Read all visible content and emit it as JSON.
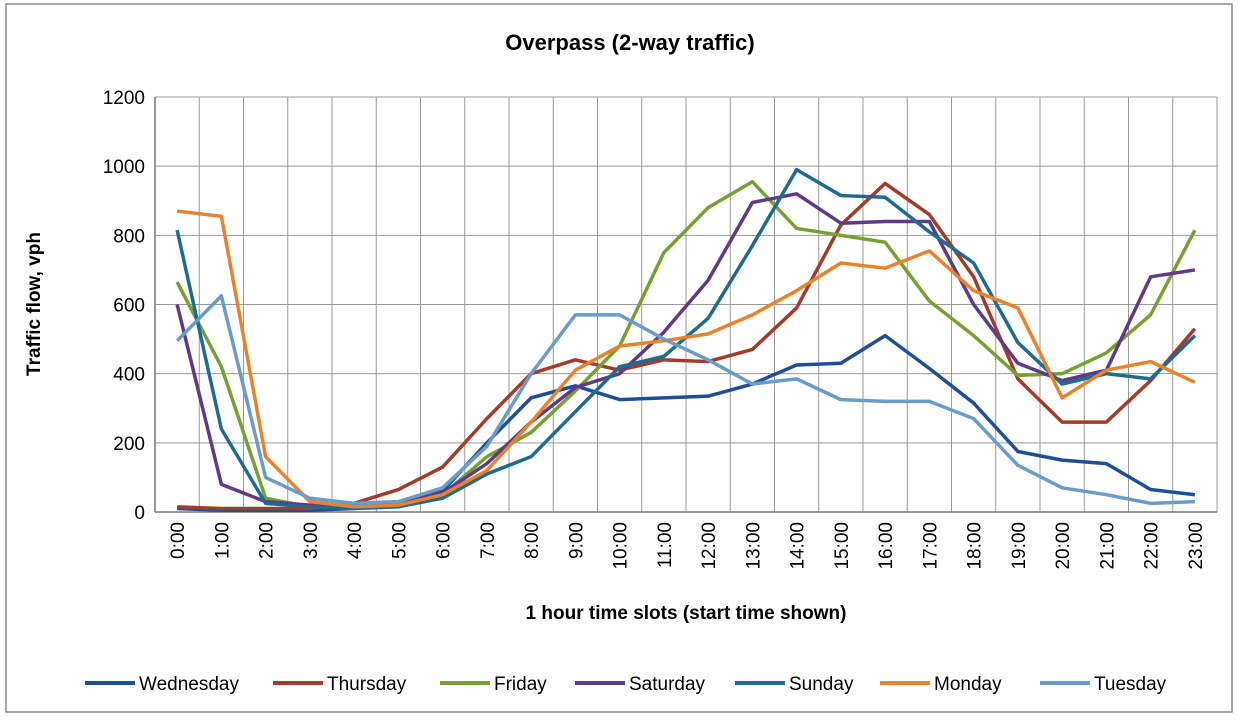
{
  "chart_data": {
    "type": "line",
    "title": "Overpass (2-way traffic)",
    "y_label": "Traffic flow, vph",
    "x_label": "1 hour time slots (start time shown)",
    "categories": [
      "0:00",
      "1:00",
      "2:00",
      "3:00",
      "4:00",
      "5:00",
      "6:00",
      "7:00",
      "8:00",
      "9:00",
      "10:00",
      "11:00",
      "12:00",
      "13:00",
      "14:00",
      "15:00",
      "16:00",
      "17:00",
      "18:00",
      "19:00",
      "20:00",
      "21:00",
      "22:00",
      "23:00"
    ],
    "ylim": [
      0,
      1200
    ],
    "yticks": [
      0,
      200,
      400,
      600,
      800,
      1000,
      1200
    ],
    "grid": true,
    "legend": "bottom",
    "series": [
      {
        "name": "Wednesday",
        "color": "#1f4e99",
        "values": [
          10,
          5,
          5,
          5,
          10,
          20,
          60,
          200,
          330,
          365,
          325,
          330,
          335,
          370,
          425,
          430,
          510,
          415,
          315,
          175,
          150,
          140,
          65,
          50
        ]
      },
      {
        "name": "Thursday",
        "color": "#a33b2a",
        "values": [
          15,
          10,
          10,
          10,
          25,
          65,
          130,
          270,
          400,
          440,
          410,
          440,
          435,
          470,
          590,
          830,
          950,
          860,
          680,
          385,
          260,
          260,
          380,
          530
        ]
      },
      {
        "name": "Friday",
        "color": "#77a032",
        "values": [
          665,
          420,
          40,
          15,
          15,
          20,
          50,
          160,
          230,
          350,
          480,
          750,
          880,
          955,
          820,
          800,
          780,
          610,
          510,
          395,
          400,
          460,
          570,
          815
        ]
      },
      {
        "name": "Saturday",
        "color": "#5e3a87",
        "values": [
          600,
          80,
          30,
          20,
          20,
          25,
          55,
          140,
          260,
          360,
          400,
          520,
          670,
          895,
          920,
          835,
          840,
          840,
          600,
          430,
          380,
          410,
          680,
          700
        ]
      },
      {
        "name": "Sunday",
        "color": "#1e6b8f",
        "values": [
          815,
          240,
          25,
          15,
          10,
          15,
          40,
          110,
          160,
          290,
          420,
          450,
          560,
          770,
          990,
          915,
          910,
          810,
          720,
          490,
          370,
          400,
          385,
          510
        ]
      },
      {
        "name": "Monday",
        "color": "#e8822b",
        "values": [
          870,
          855,
          160,
          30,
          15,
          20,
          50,
          120,
          260,
          410,
          480,
          495,
          515,
          570,
          640,
          720,
          705,
          755,
          640,
          590,
          330,
          410,
          435,
          375
        ]
      },
      {
        "name": "Tuesday",
        "color": "#6b9bc9",
        "values": [
          495,
          625,
          100,
          40,
          25,
          30,
          70,
          190,
          400,
          570,
          570,
          500,
          440,
          370,
          385,
          325,
          320,
          320,
          270,
          135,
          70,
          50,
          25,
          30
        ]
      }
    ]
  }
}
